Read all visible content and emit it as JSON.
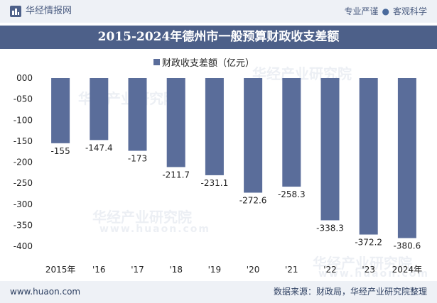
{
  "header": {
    "logo_text": "华经情报网",
    "tagline_left": "专业严谨",
    "tagline_right": "客观科学"
  },
  "title": "2015-2024年德州市一般预算财政收支差额",
  "footer": {
    "url": "www.huaon.com",
    "source": "数据来源：财政局，华经产业研究院整理"
  },
  "watermark": {
    "text": "华经产业研究院",
    "url_text": "www.huaon.com"
  },
  "colors": {
    "bar": "#5a6d9a",
    "title_bg": "#4d6089",
    "band_bg": "#eef1f6"
  },
  "chart_data": {
    "type": "bar",
    "categories": [
      "2015年",
      "'16",
      "'17",
      "'18",
      "'19",
      "'20",
      "'21",
      "'22",
      "'23",
      "2024年"
    ],
    "series": [
      {
        "name": "财政收支差额（亿元）",
        "values": [
          -155,
          -147.4,
          -173,
          -211.7,
          -231.1,
          -272.6,
          -258.3,
          -338.3,
          -372.2,
          -380.6
        ]
      }
    ],
    "data_labels": [
      "-155",
      "-147.4",
      "-173",
      "-211.7",
      "-231.1",
      "-272.6",
      "-258.3",
      "-338.3",
      "-372.2",
      "-380.6"
    ],
    "y_ticks": [
      "000",
      "-050",
      "-100",
      "-150",
      "-200",
      "-250",
      "-300",
      "-350",
      "-400"
    ],
    "ylim": [
      -400,
      0
    ],
    "legend_position": "top-center",
    "grid": false
  }
}
